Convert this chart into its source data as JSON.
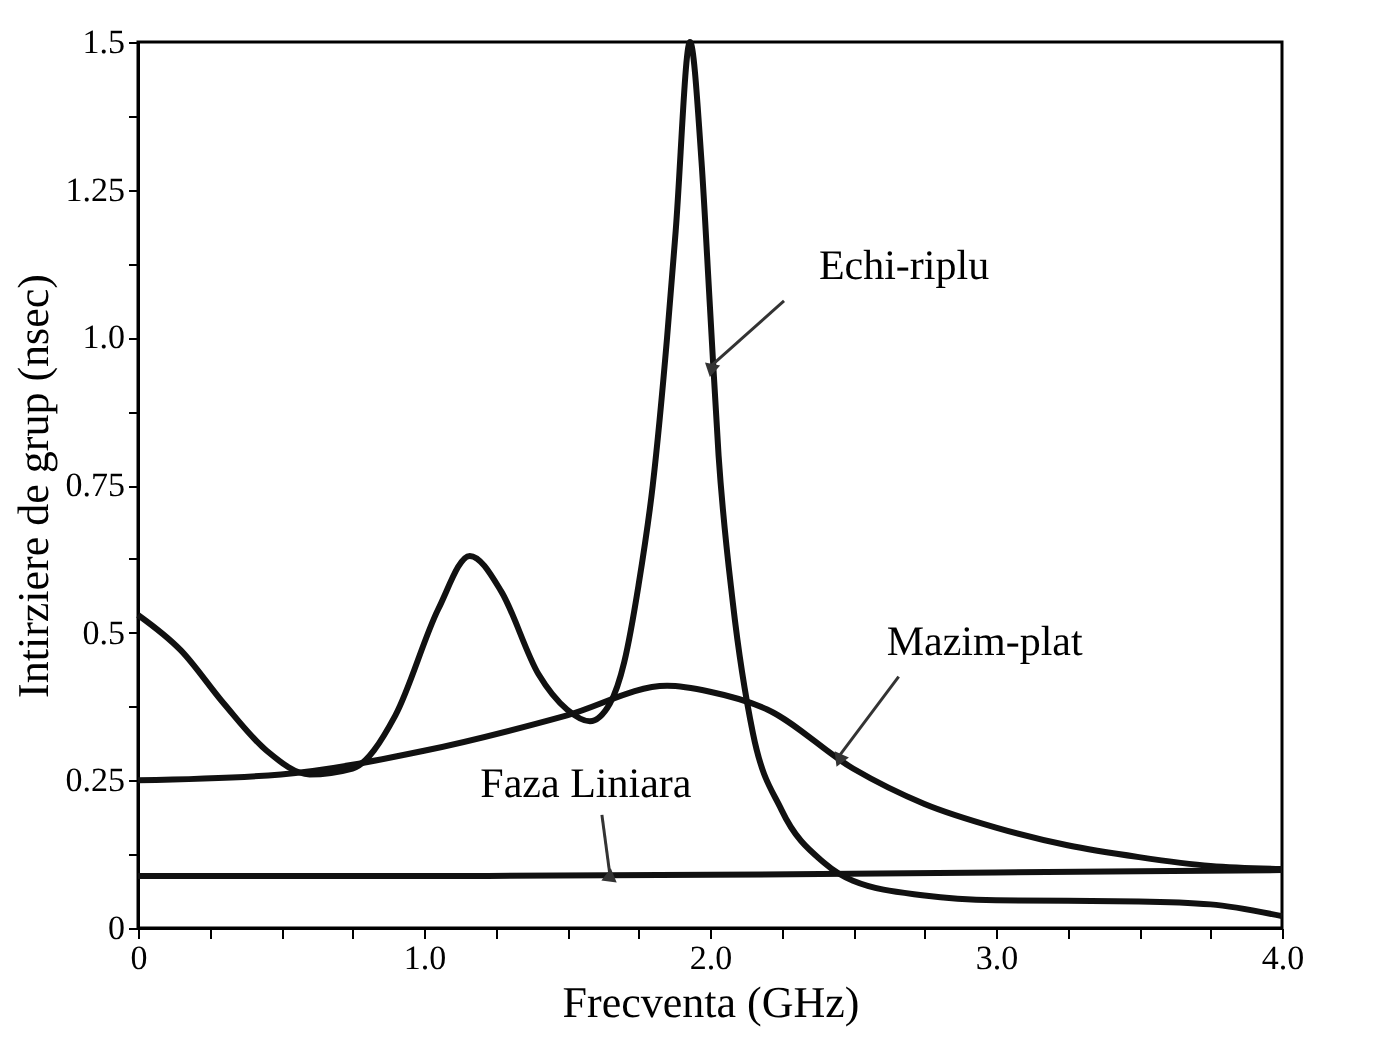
{
  "chart_data": {
    "type": "line",
    "xlabel": "Frecventa (GHz)",
    "ylabel": "Intirziere de grup (nsec)",
    "xlim": [
      0,
      4.0
    ],
    "ylim": [
      0,
      1.5
    ],
    "xticks": [
      0,
      {
        "value": 0.25,
        "label": null
      },
      {
        "value": 0.5,
        "label": null
      },
      {
        "value": 0.75,
        "label": null
      },
      {
        "value": 1,
        "label": "1.0"
      },
      {
        "value": 1.25,
        "label": null
      },
      {
        "value": 1.5,
        "label": null
      },
      {
        "value": 1.75,
        "label": null
      },
      {
        "value": 2,
        "label": "2.0"
      },
      {
        "value": 2.25,
        "label": null
      },
      {
        "value": 2.5,
        "label": null
      },
      {
        "value": 2.75,
        "label": null
      },
      {
        "value": 3,
        "label": "3.0"
      },
      {
        "value": 3.25,
        "label": null
      },
      {
        "value": 3.5,
        "label": null
      },
      {
        "value": 3.75,
        "label": null
      },
      {
        "value": 4,
        "label": "4.0"
      }
    ],
    "yticks": [
      0,
      {
        "value": 0.125,
        "label": null
      },
      0.25,
      {
        "value": 0.375,
        "label": null
      },
      0.5,
      {
        "value": 0.625,
        "label": null
      },
      0.75,
      {
        "value": 0.875,
        "label": null
      },
      {
        "value": 1,
        "label": "1.0"
      },
      {
        "value": 1.125,
        "label": null
      },
      1.25,
      {
        "value": 1.375,
        "label": null
      },
      1.5
    ],
    "grid": false,
    "marker": "none",
    "line_style": "solid",
    "series": [
      {
        "color": "#111111",
        "x": [
          0,
          0.15,
          0.3,
          0.45,
          0.6,
          0.75,
          0.9,
          1.05,
          1.16,
          1.27,
          1.4,
          1.5,
          1.58,
          1.65,
          1.7,
          1.75,
          1.8,
          1.85,
          1.88,
          1.93,
          1.97,
          2.0,
          2.03,
          2.08,
          2.15,
          2.25,
          2.4,
          2.5,
          2.75,
          3.0,
          3.5,
          3.75,
          4.0
        ],
        "values": [
          0.53,
          0.47,
          0.38,
          0.3,
          0.26,
          0.27,
          0.36,
          0.54,
          0.63,
          0.57,
          0.43,
          0.37,
          0.35,
          0.38,
          0.45,
          0.58,
          0.75,
          1.0,
          1.18,
          1.5,
          1.3,
          1.05,
          0.8,
          0.55,
          0.33,
          0.2,
          0.11,
          0.08,
          0.055,
          0.047,
          0.045,
          0.04,
          0.02
        ]
      },
      {
        "color": "#111111",
        "x": [
          0,
          0.5,
          1.0,
          1.5,
          1.85,
          2.0,
          2.2,
          2.5,
          2.75,
          3.0,
          3.25,
          3.5,
          3.75,
          4.0
        ],
        "values": [
          0.25,
          0.26,
          0.3,
          0.36,
          0.41,
          0.4,
          0.37,
          0.27,
          0.21,
          0.17,
          0.14,
          0.12,
          0.105,
          0.1
        ]
      },
      {
        "color": "#111111",
        "x": [
          0,
          1.0,
          2.0,
          3.0,
          4.0
        ],
        "values": [
          0.088,
          0.088,
          0.09,
          0.094,
          0.098
        ]
      }
    ],
    "annotations": [
      {
        "text": "Echi-riplu",
        "x": 2.0,
        "y": 0.95
      },
      {
        "text": "Mazim-plat",
        "x": 2.45,
        "y": 0.29
      },
      {
        "text": "Faza Liniara",
        "x": 1.65,
        "y": 0.09
      }
    ]
  }
}
